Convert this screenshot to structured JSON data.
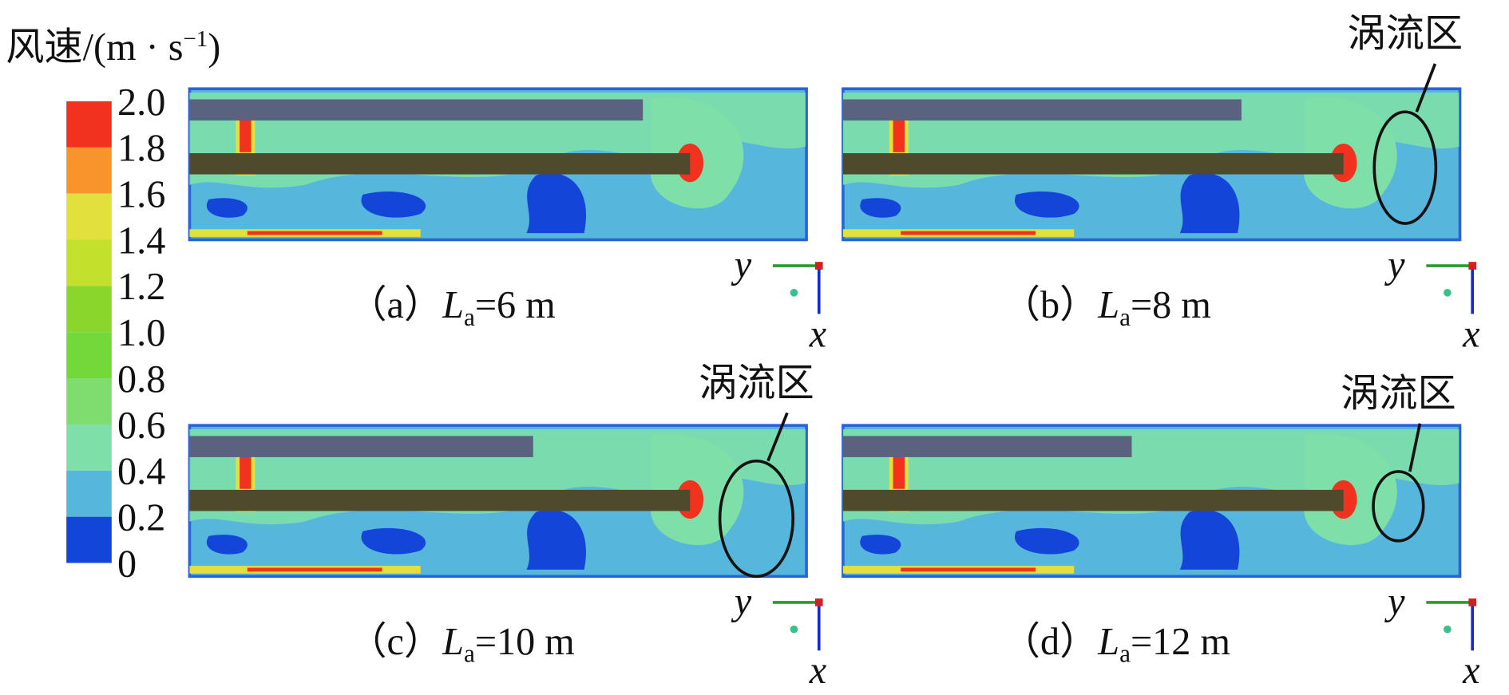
{
  "colorbar": {
    "title": {
      "text": "风速/(m · s",
      "superscript": "−1",
      "close": ")"
    },
    "ticks": [
      "2.0",
      "1.8",
      "1.6",
      "1.4",
      "1.2",
      "1.0",
      "0.8",
      "0.6",
      "0.4",
      "0.2",
      "0"
    ],
    "colors": [
      "#f0321e",
      "#f7952c",
      "#e2e03c",
      "#c2e02c",
      "#8bd62c",
      "#74d83a",
      "#7fdc6e",
      "#7ee0a8",
      "#57b6dc",
      "#1346d8"
    ]
  },
  "panels": [
    {
      "label": "（a）",
      "variable": "L",
      "subscript": "a",
      "value": "=6 m",
      "axis_y": "y",
      "axis_x": "x"
    },
    {
      "label": "（b）",
      "variable": "L",
      "subscript": "a",
      "value": "=8 m",
      "axis_y": "y",
      "axis_x": "x",
      "annotation": "涡流区"
    },
    {
      "label": "（c）",
      "variable": "L",
      "subscript": "a",
      "value": "=10 m",
      "axis_y": "y",
      "axis_x": "x",
      "annotation": "涡流区"
    },
    {
      "label": "（d）",
      "variable": "L",
      "subscript": "a",
      "value": "=12 m",
      "axis_y": "y",
      "axis_x": "x",
      "annotation": "涡流区"
    }
  ]
}
